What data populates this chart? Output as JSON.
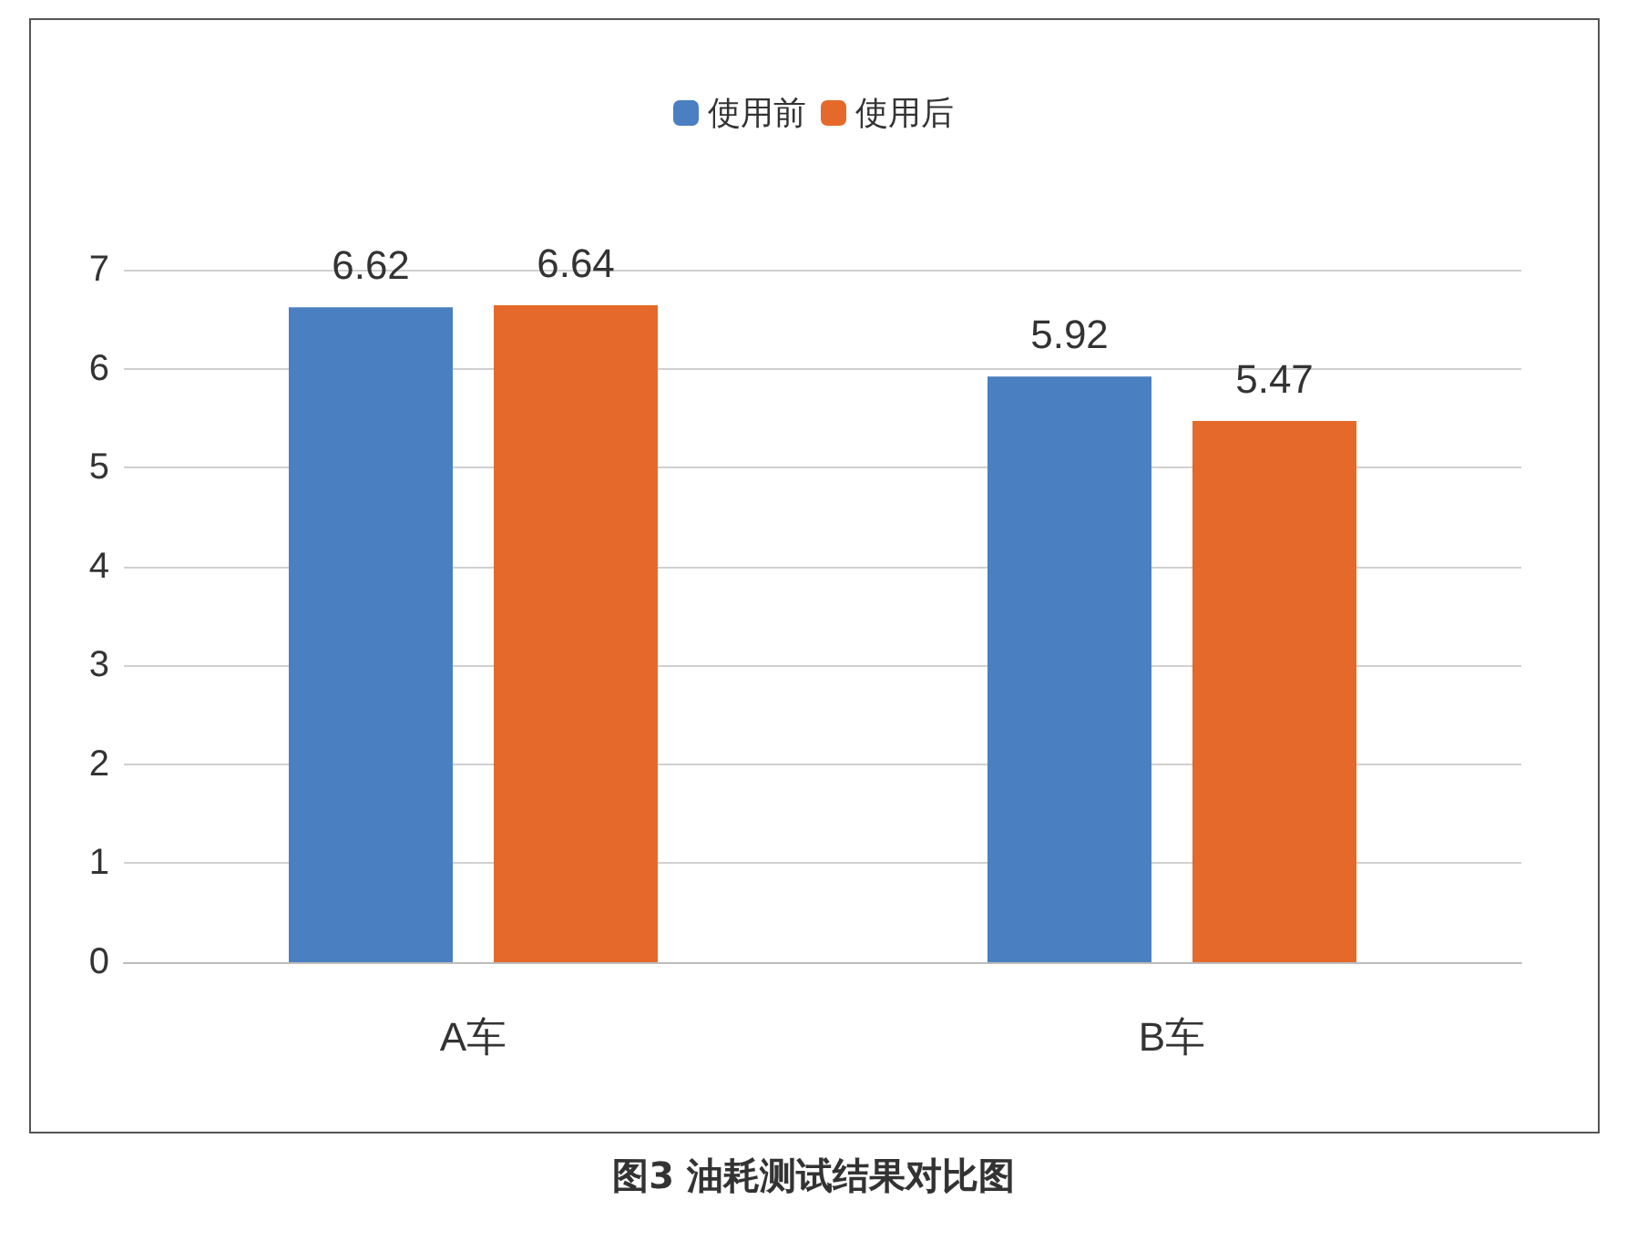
{
  "chart_data": {
    "type": "bar",
    "title": "图3 油耗测试结果对比图",
    "categories": [
      "A车",
      "B车"
    ],
    "series": [
      {
        "name": "使用前",
        "color": "#4a7fc1",
        "values": [
          6.62,
          5.92
        ]
      },
      {
        "name": "使用后",
        "color": "#e5692a",
        "values": [
          6.64,
          5.47
        ]
      }
    ],
    "ylim": [
      0,
      7
    ],
    "yticks": [
      0,
      1,
      2,
      3,
      4,
      5,
      6,
      7
    ],
    "grid": "y",
    "legend": "top",
    "data_labels": true
  }
}
